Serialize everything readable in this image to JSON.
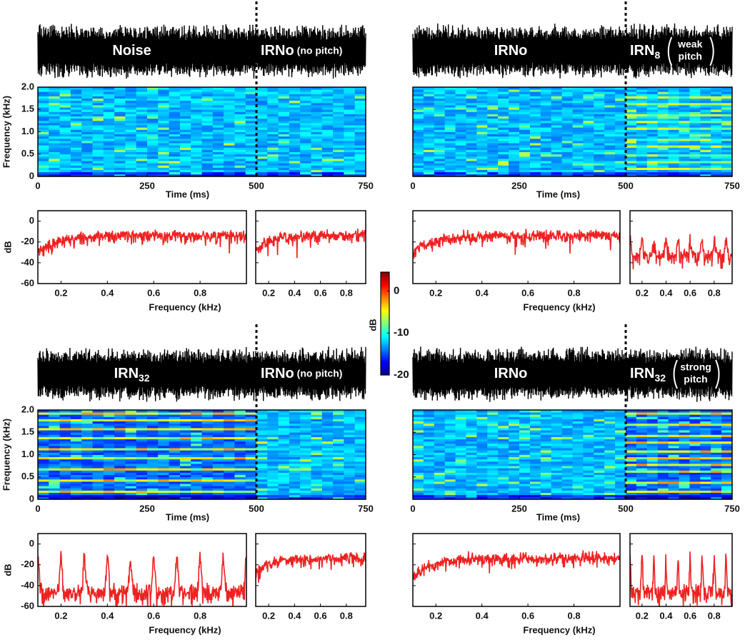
{
  "panels": [
    {
      "left_label": "Noise",
      "right_label": "IRNo",
      "right_note": "(no pitch)"
    },
    {
      "left_label": "IRNo",
      "right_label": "IRN",
      "right_sub": "8",
      "right_note_lines": [
        "weak",
        "pitch"
      ]
    },
    {
      "left_label": "IRN",
      "left_sub": "32",
      "right_label": "IRNo",
      "right_note": "(no pitch)"
    },
    {
      "left_label": "IRNo",
      "right_label": "IRN",
      "right_sub": "32",
      "right_note_lines": [
        "strong",
        "pitch"
      ]
    }
  ],
  "spectrogram": {
    "ylabel": "Frequency (kHz)",
    "xlabel": "Time (ms)",
    "ylim": [
      0,
      2
    ],
    "yticks": [
      0,
      0.5,
      {
        "value": 1,
        "label": "1.0"
      },
      1.5,
      {
        "value": 2,
        "label": "2.0"
      }
    ],
    "xlim": [
      0,
      750
    ],
    "xticks": [
      0,
      250,
      500,
      750
    ],
    "boundary": 500
  },
  "spectrum": {
    "ylabel": "dB",
    "xlabel": "Frequency (kHz)",
    "ylim": [
      -60,
      10
    ],
    "yticks": [
      0,
      -20,
      -40,
      -60
    ],
    "wide_xlim": [
      0.1,
      1.0
    ],
    "narrow_xlim": [
      0.1,
      0.95
    ],
    "xticks": [
      0.2,
      0.4,
      0.6,
      0.8
    ],
    "color": "#ee2222"
  },
  "colorbar": {
    "label": "dB",
    "lim": [
      -20,
      4.5
    ],
    "ticks": [
      0,
      -10,
      -20
    ]
  }
}
